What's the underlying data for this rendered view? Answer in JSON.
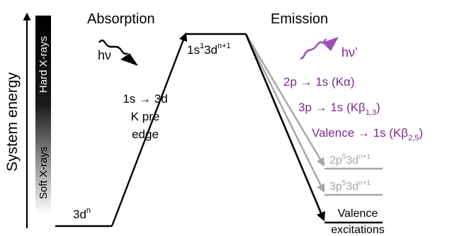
{
  "axis": {
    "label": "System energy",
    "gradient_top_label": "Hard X-rays",
    "gradient_bottom_label": "Soft X-rays"
  },
  "sections": {
    "absorption": "Absorption",
    "emission": "Emission"
  },
  "photons": {
    "incoming_label": "hν",
    "outgoing_label": "hν’"
  },
  "levels": {
    "ground": {
      "main": "3d",
      "sup": "n"
    },
    "excited": {
      "a": "1s",
      "a_sup": "1",
      "b": "3d",
      "b_sup": "n+1"
    },
    "final_2p": {
      "a": "2p",
      "a_sup": "5",
      "b": "3d",
      "b_sup": "n+1"
    },
    "final_3p": {
      "a": "3p",
      "a_sup": "5",
      "b": "3d",
      "b_sup": "n+1"
    },
    "valence": {
      "line1": "Valence",
      "line2": "excitations"
    }
  },
  "absorption_transition": {
    "line1": "1s → 3d",
    "line2": "K pre",
    "line3": "edge"
  },
  "emission_lines": [
    {
      "main": "2p → 1s (Kα)",
      "sub": "",
      "tail": ""
    },
    {
      "main": "3p → 1s (Kβ",
      "sub": "1,3",
      "tail": ")"
    },
    {
      "main": "Valence → 1s (Kβ",
      "sub": "2,5",
      "tail": ")"
    }
  ],
  "colors": {
    "ink": "#000000",
    "emission_text": "#7b2a8c",
    "photon_out": "#9b4fb5",
    "grey": "#a6a6a6",
    "gradient_dark": "#000000",
    "gradient_light": "#ffffff"
  }
}
